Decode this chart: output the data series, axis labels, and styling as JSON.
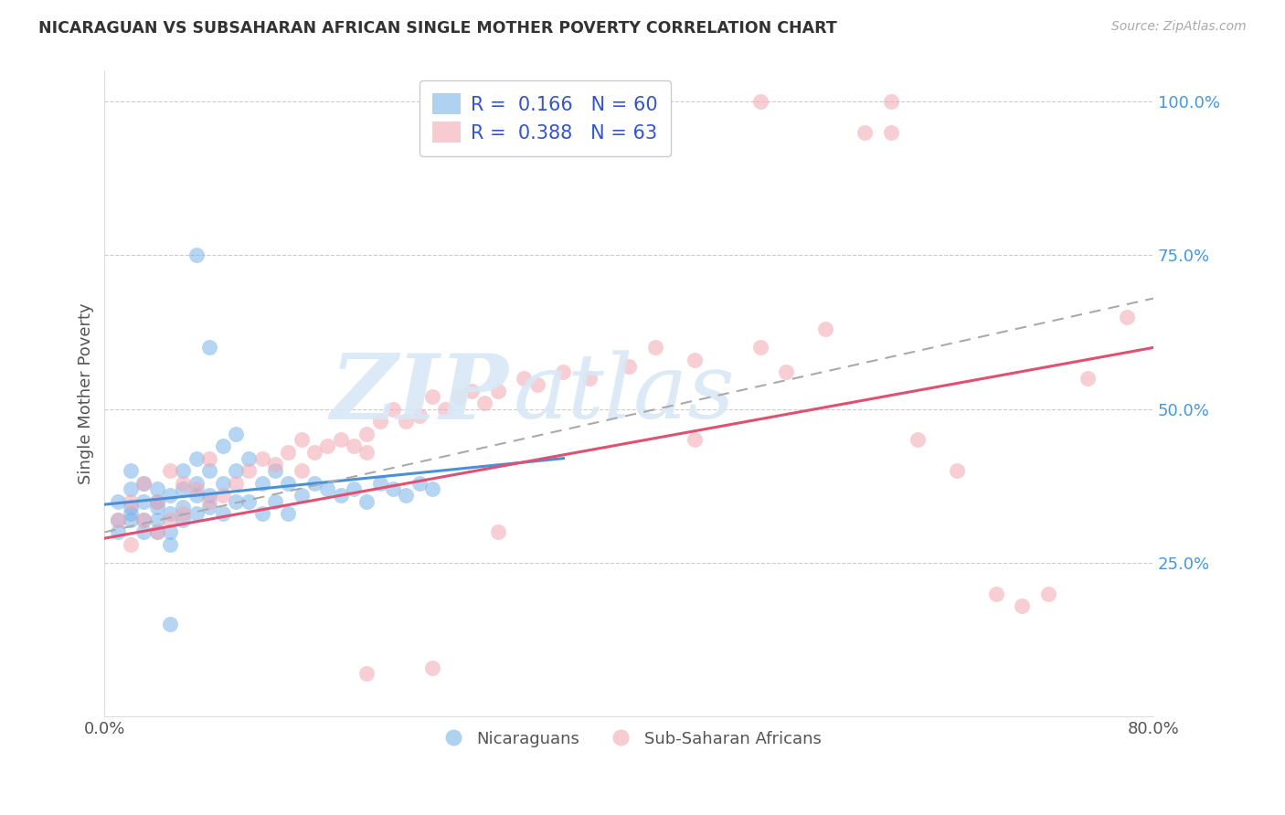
{
  "title": "NICARAGUAN VS SUBSAHARAN AFRICAN SINGLE MOTHER POVERTY CORRELATION CHART",
  "source": "Source: ZipAtlas.com",
  "ylabel": "Single Mother Poverty",
  "xlim": [
    0.0,
    0.8
  ],
  "ylim": [
    0.0,
    1.05
  ],
  "ytick_right_values": [
    1.0,
    0.75,
    0.5,
    0.25
  ],
  "legend_R": [
    "0.166",
    "0.388"
  ],
  "legend_N": [
    "60",
    "63"
  ],
  "blue_color": "#7ab4e8",
  "pink_color": "#f4a7b4",
  "blue_line_color": "#4a90d9",
  "pink_line_color": "#e05070",
  "dashed_line_color": "#aaaaaa",
  "blue_x": [
    0.01,
    0.01,
    0.01,
    0.02,
    0.02,
    0.02,
    0.02,
    0.02,
    0.03,
    0.03,
    0.03,
    0.03,
    0.04,
    0.04,
    0.04,
    0.04,
    0.04,
    0.05,
    0.05,
    0.05,
    0.05,
    0.06,
    0.06,
    0.06,
    0.06,
    0.07,
    0.07,
    0.07,
    0.07,
    0.08,
    0.08,
    0.08,
    0.09,
    0.09,
    0.09,
    0.1,
    0.1,
    0.1,
    0.11,
    0.11,
    0.12,
    0.12,
    0.13,
    0.13,
    0.14,
    0.14,
    0.15,
    0.16,
    0.17,
    0.18,
    0.19,
    0.2,
    0.21,
    0.22,
    0.23,
    0.24,
    0.25,
    0.07,
    0.08,
    0.05
  ],
  "blue_y": [
    0.3,
    0.35,
    0.32,
    0.33,
    0.37,
    0.4,
    0.34,
    0.32,
    0.35,
    0.38,
    0.32,
    0.3,
    0.34,
    0.37,
    0.32,
    0.3,
    0.35,
    0.36,
    0.33,
    0.3,
    0.28,
    0.37,
    0.4,
    0.34,
    0.32,
    0.38,
    0.42,
    0.36,
    0.33,
    0.36,
    0.4,
    0.34,
    0.38,
    0.44,
    0.33,
    0.4,
    0.46,
    0.35,
    0.42,
    0.35,
    0.38,
    0.33,
    0.4,
    0.35,
    0.38,
    0.33,
    0.36,
    0.38,
    0.37,
    0.36,
    0.37,
    0.35,
    0.38,
    0.37,
    0.36,
    0.38,
    0.37,
    0.75,
    0.6,
    0.15
  ],
  "pink_x": [
    0.01,
    0.02,
    0.02,
    0.03,
    0.03,
    0.04,
    0.04,
    0.05,
    0.05,
    0.06,
    0.06,
    0.07,
    0.08,
    0.08,
    0.09,
    0.1,
    0.11,
    0.12,
    0.13,
    0.14,
    0.15,
    0.15,
    0.16,
    0.17,
    0.18,
    0.19,
    0.2,
    0.2,
    0.21,
    0.22,
    0.23,
    0.24,
    0.25,
    0.26,
    0.27,
    0.28,
    0.29,
    0.3,
    0.32,
    0.33,
    0.35,
    0.37,
    0.4,
    0.42,
    0.45,
    0.5,
    0.52,
    0.55,
    0.58,
    0.6,
    0.62,
    0.65,
    0.68,
    0.7,
    0.72,
    0.75,
    0.78,
    0.3,
    0.25,
    0.2,
    0.45,
    0.5,
    0.6
  ],
  "pink_y": [
    0.32,
    0.28,
    0.35,
    0.32,
    0.38,
    0.3,
    0.35,
    0.32,
    0.4,
    0.33,
    0.38,
    0.37,
    0.35,
    0.42,
    0.36,
    0.38,
    0.4,
    0.42,
    0.41,
    0.43,
    0.45,
    0.4,
    0.43,
    0.44,
    0.45,
    0.44,
    0.46,
    0.43,
    0.48,
    0.5,
    0.48,
    0.49,
    0.52,
    0.5,
    0.52,
    0.53,
    0.51,
    0.53,
    0.55,
    0.54,
    0.56,
    0.55,
    0.57,
    0.6,
    0.58,
    0.6,
    0.56,
    0.63,
    0.95,
    1.0,
    0.45,
    0.4,
    0.2,
    0.18,
    0.2,
    0.55,
    0.65,
    0.3,
    0.08,
    0.07,
    0.45,
    1.0,
    0.95
  ],
  "blue_line_x0": 0.0,
  "blue_line_x1": 0.35,
  "blue_line_y0": 0.345,
  "blue_line_y1": 0.42,
  "pink_line_x0": 0.0,
  "pink_line_x1": 0.8,
  "pink_line_y0": 0.29,
  "pink_line_y1": 0.6,
  "dash_line_x0": 0.0,
  "dash_line_x1": 0.8,
  "dash_line_y0": 0.3,
  "dash_line_y1": 0.68
}
